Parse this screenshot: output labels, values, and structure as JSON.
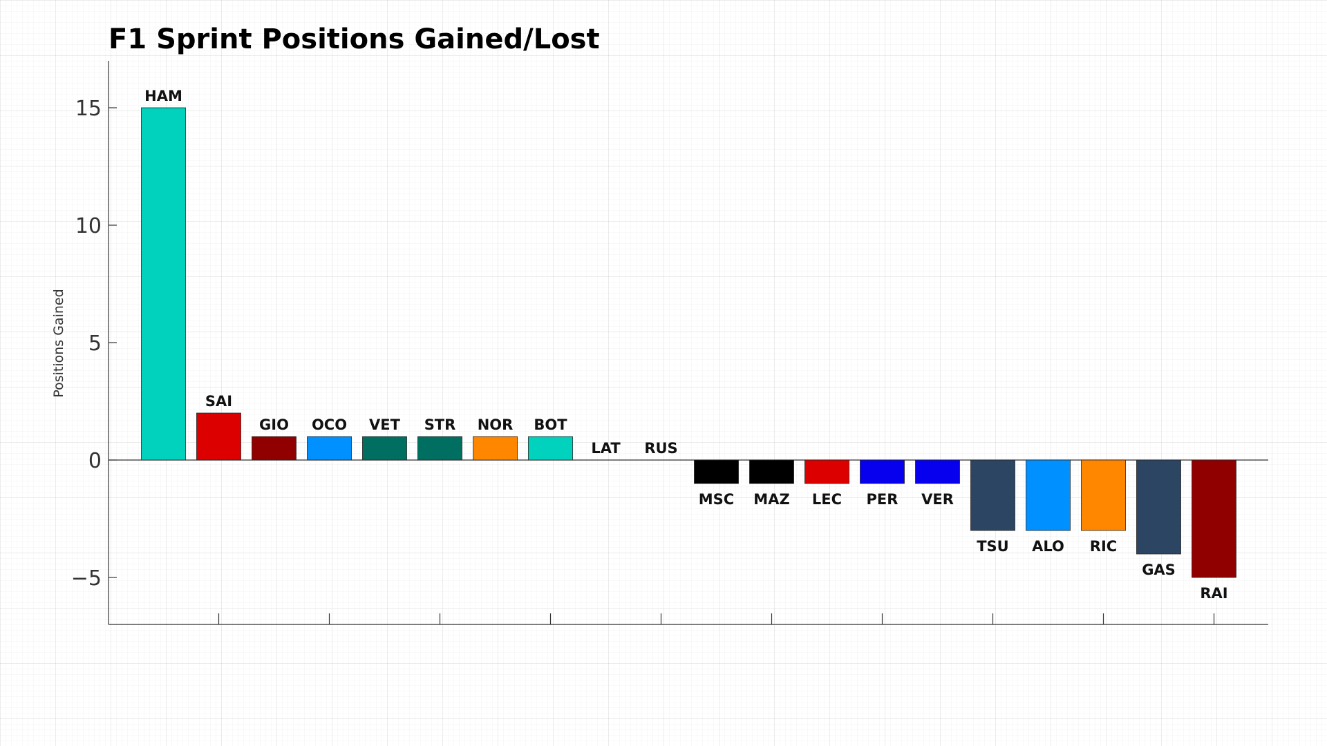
{
  "chart_data": {
    "type": "bar",
    "title": "F1 Sprint Positions Gained/Lost",
    "xlabel": "",
    "ylabel": "Positions Gained",
    "ylim": [
      -7,
      17
    ],
    "yticks": [
      -5,
      0,
      5,
      10,
      15
    ],
    "grid": true,
    "categories": [
      "HAM",
      "SAI",
      "GIO",
      "OCO",
      "VET",
      "STR",
      "NOR",
      "BOT",
      "LAT",
      "RUS",
      "MSC",
      "MAZ",
      "LEC",
      "PER",
      "VER",
      "TSU",
      "ALO",
      "RIC",
      "GAS",
      "RAI"
    ],
    "values": [
      15,
      2,
      1,
      1,
      1,
      1,
      1,
      1,
      0,
      0,
      -1,
      -1,
      -1,
      -1,
      -1,
      -3,
      -3,
      -3,
      -4,
      -5
    ],
    "colors": [
      "#00d2be",
      "#dc0000",
      "#900000",
      "#0090ff",
      "#006f62",
      "#006f62",
      "#ff8700",
      "#00d2be",
      "#005aff",
      "#005aff",
      "#000000",
      "#000000",
      "#dc0000",
      "#0600ef",
      "#0600ef",
      "#2b4562",
      "#0090ff",
      "#ff8700",
      "#2b4562",
      "#900000"
    ]
  }
}
